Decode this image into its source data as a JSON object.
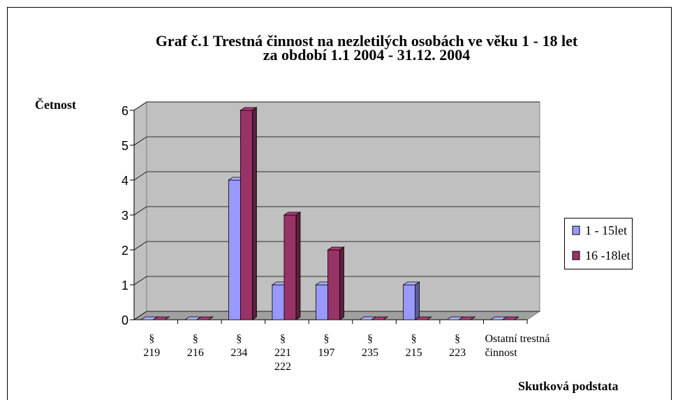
{
  "chart_data": {
    "type": "bar3d",
    "title": "Graf č.1 Trestná činnost na nezletilých osobách ve věku 1 - 18 let",
    "subtitle": "za období 1.1 2004 - 31.12. 2004",
    "y_label": "Četnost",
    "x_label": "Skutková podstata",
    "categories": [
      "§\n219",
      "§\n216",
      "§\n234",
      "§\n221\n222",
      "§\n197",
      "§\n235",
      "§\n215",
      "§\n223",
      "Ostatní trestná\nčinnost"
    ],
    "series": [
      {
        "name": "1 - 15let",
        "color": "#9999ff",
        "values": [
          0,
          0,
          4,
          1,
          1,
          0,
          1,
          0,
          0
        ]
      },
      {
        "name": "16 -18let",
        "color": "#993366",
        "values": [
          0,
          0,
          6,
          3,
          2,
          0,
          0,
          0,
          0
        ]
      }
    ],
    "ylim": [
      0,
      6
    ],
    "yticks": [
      0,
      1,
      2,
      3,
      4,
      5,
      6
    ],
    "grid": true,
    "legend": "right"
  }
}
